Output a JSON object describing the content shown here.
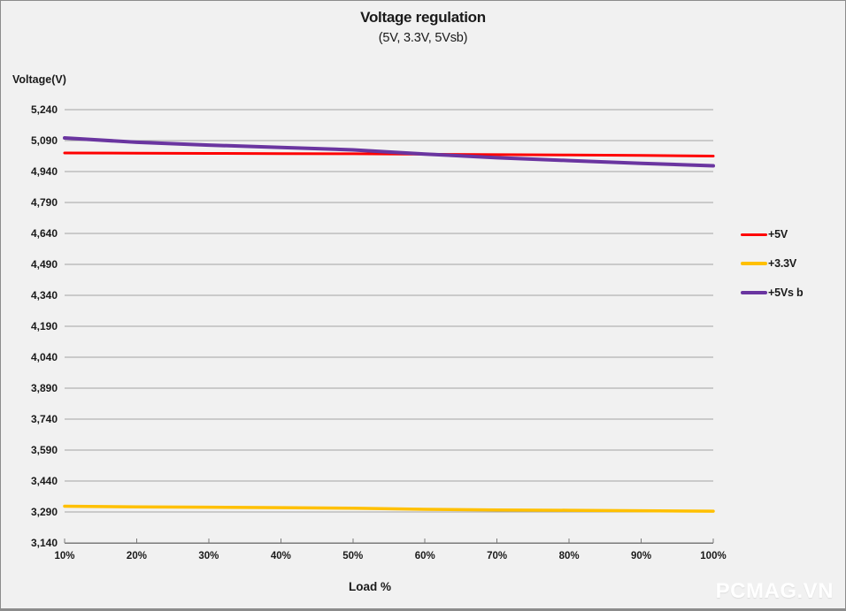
{
  "watermark": "PCMAG.VN",
  "chart_data": {
    "type": "line",
    "title": "Voltage regulation",
    "subtitle": "(5V, 3.3V, 5Vsb)",
    "xlabel": "Load %",
    "ylabel": "Voltage(V)",
    "categories": [
      "10%",
      "20%",
      "30%",
      "40%",
      "50%",
      "60%",
      "70%",
      "80%",
      "90%",
      "100%"
    ],
    "ylim": [
      3140,
      5240
    ],
    "ytick_step": 150,
    "ytick_labels": [
      "5,240",
      "5,090",
      "4,940",
      "4,790",
      "4,640",
      "4,490",
      "4,340",
      "4,190",
      "4,040",
      "3,890",
      "3,740",
      "3,590",
      "3,440",
      "3,290",
      "3,140"
    ],
    "grid": true,
    "legend_position": "right",
    "colors": {
      "background": "#f1f1f1",
      "gridline": "#a3a3a3",
      "axis": "#7a7a7a",
      "text": "#1a1a1a"
    },
    "series": [
      {
        "name": "+5V",
        "color": "#fe0000",
        "width": 3,
        "values": [
          5030,
          5029,
          5028,
          5027,
          5026,
          5024,
          5022,
          5020,
          5018,
          5015
        ]
      },
      {
        "name": "+3.3V",
        "color": "#ffc000",
        "width": 3.5,
        "values": [
          3318,
          3315,
          3313,
          3311,
          3308,
          3303,
          3300,
          3298,
          3296,
          3294
        ]
      },
      {
        "name": "+5Vs b",
        "color": "#6a35a0",
        "width": 4,
        "values": [
          5103,
          5082,
          5068,
          5057,
          5045,
          5025,
          5007,
          4993,
          4980,
          4968
        ]
      }
    ]
  }
}
